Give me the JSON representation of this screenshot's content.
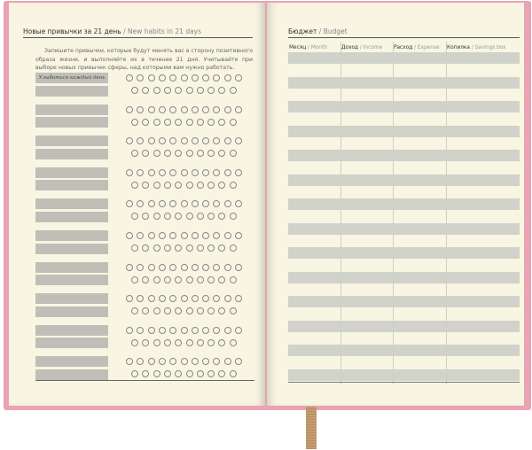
{
  "left_page": {
    "title_ru": "Новые привычки за 21 день",
    "title_en": "New habits in 21 days",
    "separator": "/",
    "intro": "Запишите привычки, которые будут менять вас в сторону позитивного образа жизни, и выполняйте их в течение 21 дня. Учитывайте при выборе новых привычек сферы, над которыми вам нужно работать.",
    "example_habit": "Улыбаться каждый день",
    "habit_groups": 10,
    "days_per_habit": 21
  },
  "right_page": {
    "title_ru": "Бюджет",
    "title_en": "Budget",
    "columns": [
      {
        "ru": "Месяц",
        "en": "Month"
      },
      {
        "ru": "Доход",
        "en": "Income"
      },
      {
        "ru": "Расход",
        "en": "Expense"
      },
      {
        "ru": "Копилка",
        "en": "Savings box"
      }
    ],
    "rows": 14
  },
  "colors": {
    "cover": "#eaa3b3",
    "paper": "#f8f5e3",
    "ribbon": "#c39c6f",
    "fill": "#bfbfb8"
  }
}
